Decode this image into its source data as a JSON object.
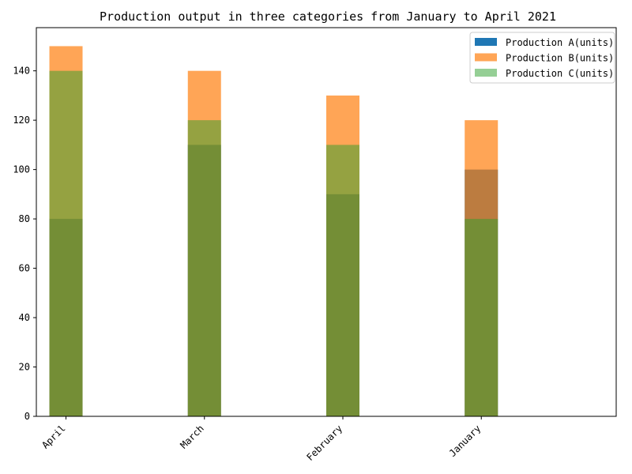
{
  "chart_data": {
    "type": "bar",
    "title": "Production output in three categories from January to April 2021",
    "xlabel": "",
    "ylabel": "",
    "categories": [
      "April",
      "March",
      "February",
      "January"
    ],
    "series": [
      {
        "name": "Production A(units)",
        "values": [
          80,
          110,
          90,
          100
        ],
        "color": "#1f77b4",
        "opacity": 1.0
      },
      {
        "name": "Production B(units)",
        "values": [
          150,
          140,
          130,
          120
        ],
        "color": "#ff7f0e",
        "opacity": 0.7
      },
      {
        "name": "Production C(units)",
        "values": [
          140,
          120,
          110,
          80
        ],
        "color": "#2ca02c",
        "opacity": 0.5
      }
    ],
    "ylim": [
      0,
      157.5
    ],
    "yticks": [
      0,
      20,
      40,
      60,
      80,
      100,
      120,
      140
    ],
    "overlapping_bars": true,
    "grid": false,
    "legend_position": "top-right"
  }
}
